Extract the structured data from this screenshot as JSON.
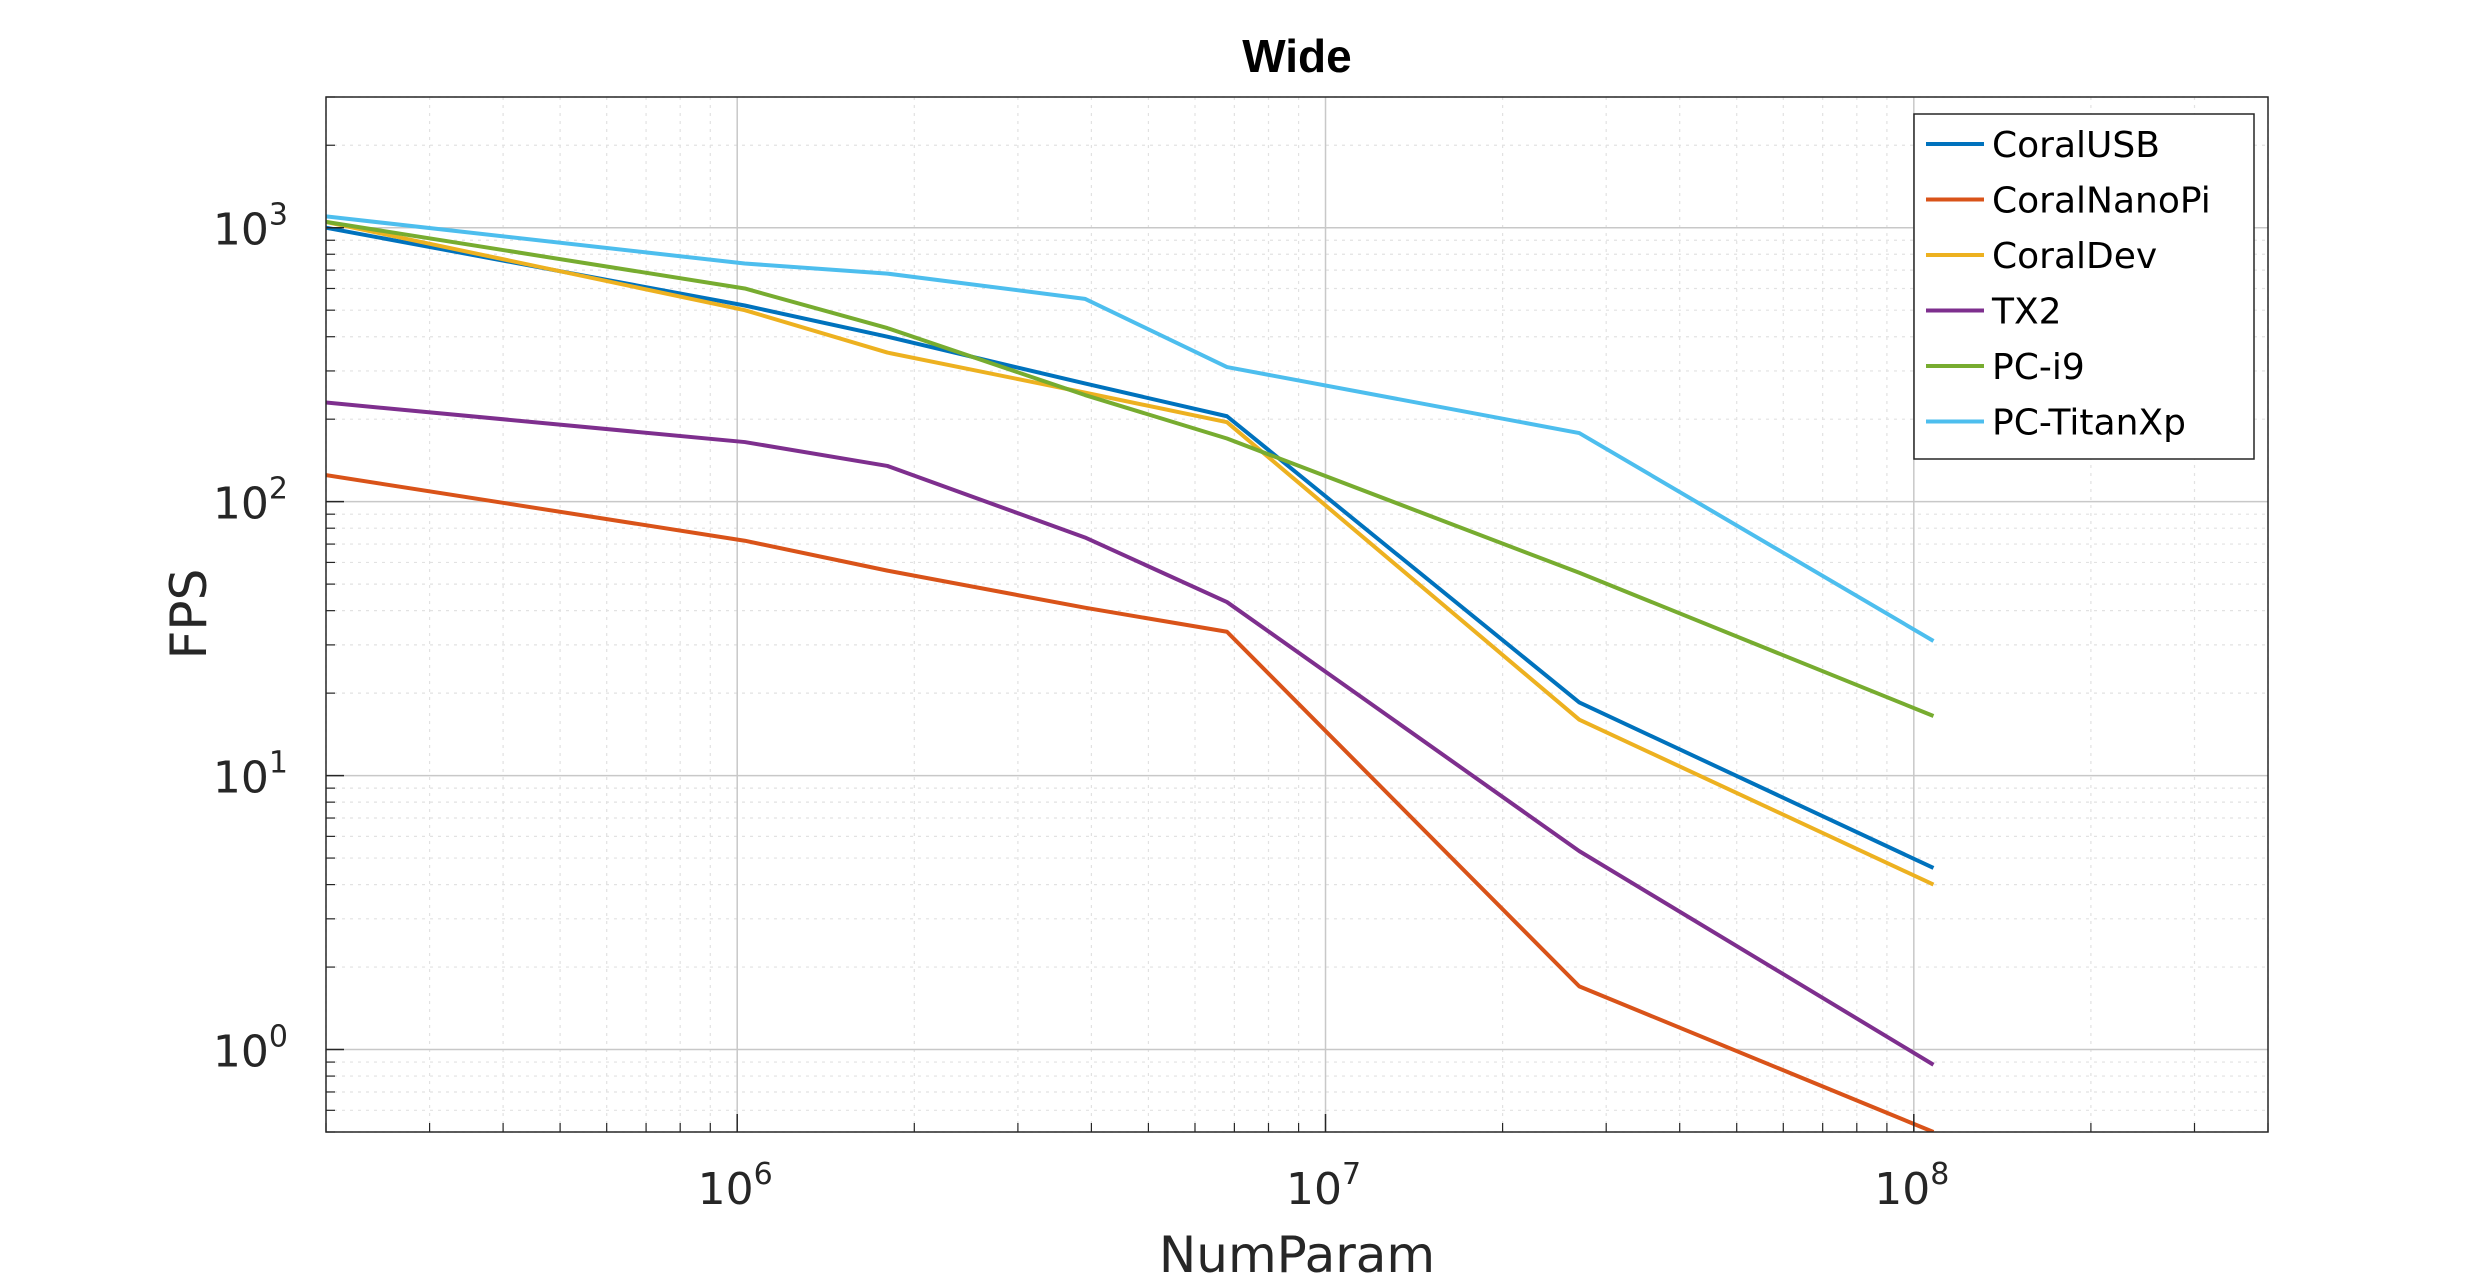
{
  "chart_data": {
    "type": "line",
    "title": "Wide",
    "xlabel": "NumParam",
    "ylabel": "FPS",
    "xscale": "log",
    "yscale": "log",
    "xlim": [
      200000,
      400000000
    ],
    "ylim": [
      0.5,
      3000
    ],
    "grid": true,
    "minor_grid": true,
    "legend_position": "top-right",
    "x_ticks": [
      {
        "base": "10",
        "exp": "6",
        "value": 1000000
      },
      {
        "base": "10",
        "exp": "7",
        "value": 10000000
      },
      {
        "base": "10",
        "exp": "8",
        "value": 100000000
      }
    ],
    "y_ticks": [
      {
        "base": "10",
        "exp": "0",
        "value": 1
      },
      {
        "base": "10",
        "exp": "1",
        "value": 10
      },
      {
        "base": "10",
        "exp": "2",
        "value": 100
      },
      {
        "base": "10",
        "exp": "3",
        "value": 1000
      }
    ],
    "x": [
      200000,
      1030000,
      1800000,
      3900000,
      6800000,
      27000000,
      108000000
    ],
    "series": [
      {
        "name": "CoralUSB",
        "color": "#0072BD",
        "values": [
          1000,
          520,
          400,
          270,
          205,
          18.5,
          4.6
        ]
      },
      {
        "name": "CoralNanoPi",
        "color": "#D95319",
        "values": [
          125,
          72,
          56,
          41,
          33.5,
          1.7,
          0.5
        ]
      },
      {
        "name": "CoralDev",
        "color": "#EDB120",
        "values": [
          1050,
          500,
          350,
          250,
          195,
          16,
          4.0
        ]
      },
      {
        "name": "TX2",
        "color": "#7E2F8E",
        "values": [
          230,
          165,
          135,
          74,
          43,
          5.3,
          0.88
        ]
      },
      {
        "name": "PC-i9",
        "color": "#77AC30",
        "values": [
          1050,
          600,
          430,
          245,
          170,
          55,
          16.5
        ]
      },
      {
        "name": "PC-TitanXp",
        "color": "#4DBEEE",
        "values": [
          1100,
          740,
          680,
          550,
          310,
          178,
          31
        ]
      }
    ]
  }
}
